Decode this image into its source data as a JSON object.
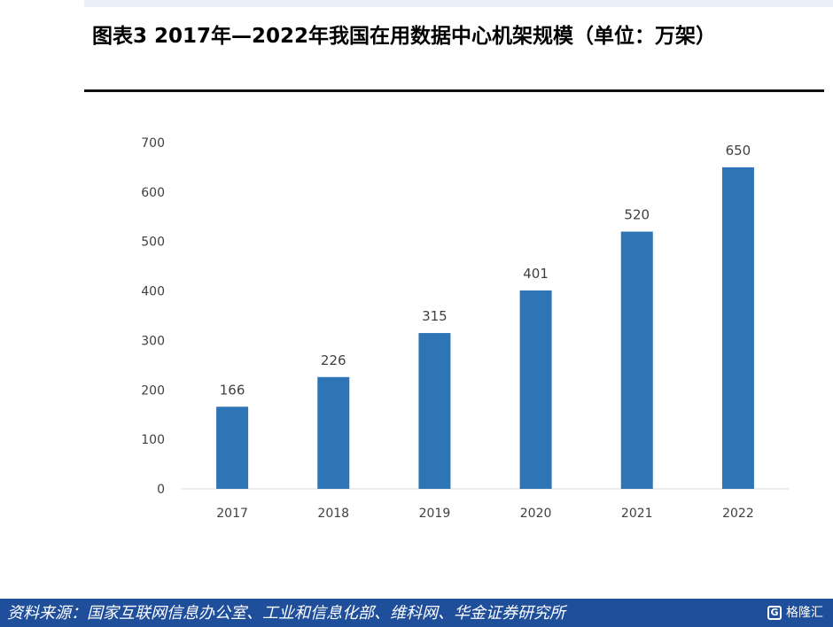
{
  "title": "图表3  2017年—2022年我国在用数据中心机架规模（单位：万架）",
  "chart_data": {
    "type": "bar",
    "title": "",
    "xlabel": "",
    "ylabel": "",
    "categories": [
      "2017",
      "2018",
      "2019",
      "2020",
      "2021",
      "2022"
    ],
    "values": [
      166,
      226,
      315,
      401,
      520,
      650
    ],
    "ylim": [
      0,
      700
    ],
    "yticks": [
      "0",
      "100",
      "200",
      "300",
      "400",
      "500",
      "600",
      "700"
    ],
    "grid": false,
    "bar_color": "#2e75b6"
  },
  "footer": {
    "source": "资料来源：国家互联网信息办公室、工业和信息化部、维科网、华金证券研究所",
    "watermark_mark": "G",
    "watermark_text": "格隆汇"
  }
}
